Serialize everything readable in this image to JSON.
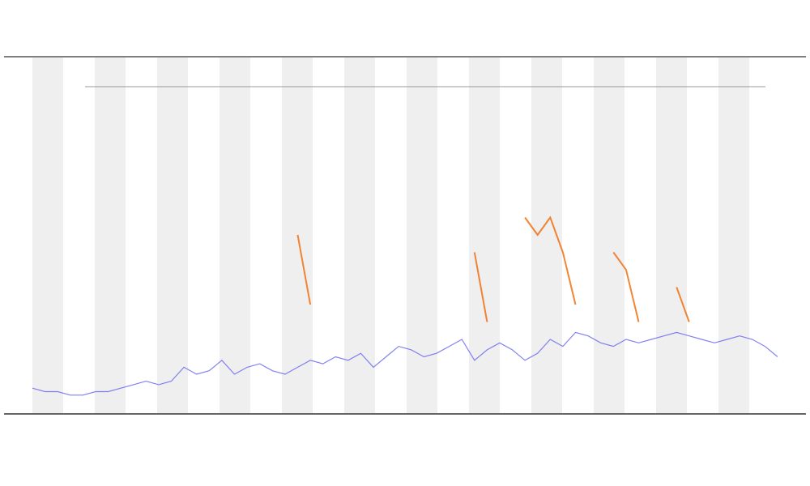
{
  "chart_data": {
    "type": "line",
    "categories": [
      null,
      null,
      null,
      null,
      null,
      null,
      null,
      null,
      null,
      null,
      null,
      null,
      null,
      null,
      null,
      null,
      null,
      null,
      null,
      null,
      null,
      null,
      null,
      null,
      null,
      null,
      null,
      null,
      null,
      null,
      null,
      null,
      null,
      null,
      null,
      null,
      null,
      null,
      null,
      null,
      null,
      null,
      null,
      null,
      null,
      null,
      null,
      null,
      null,
      null,
      null,
      null,
      null,
      null,
      null,
      null,
      null,
      null,
      null,
      null
    ],
    "series": [
      {
        "color": "#6b6bf0",
        "values": [
          6,
          5,
          5,
          4,
          4,
          5,
          5,
          6,
          7,
          8,
          7,
          8,
          12,
          10,
          11,
          14,
          10,
          12,
          13,
          11,
          10,
          12,
          14,
          13,
          15,
          14,
          16,
          12,
          15,
          18,
          17,
          15,
          16,
          18,
          20,
          14,
          17,
          19,
          17,
          14,
          16,
          20,
          18,
          22,
          21,
          19,
          18,
          20,
          19,
          20,
          21,
          22,
          21,
          20,
          19,
          20,
          21,
          20,
          18,
          15
        ]
      },
      {
        "color": "#f07010",
        "values": [
          null,
          null,
          null,
          null,
          null,
          null,
          null,
          null,
          null,
          null,
          null,
          null,
          null,
          null,
          null,
          null,
          null,
          null,
          null,
          null,
          null,
          50,
          30,
          null,
          null,
          null,
          null,
          null,
          null,
          null,
          null,
          null,
          null,
          null,
          null,
          45,
          25,
          null,
          null,
          55,
          50,
          55,
          45,
          30,
          null,
          null,
          45,
          40,
          25,
          null,
          null,
          35,
          25,
          null,
          null,
          null,
          null,
          null,
          null,
          null
        ]
      }
    ],
    "ylim": [
      0,
      100
    ]
  }
}
